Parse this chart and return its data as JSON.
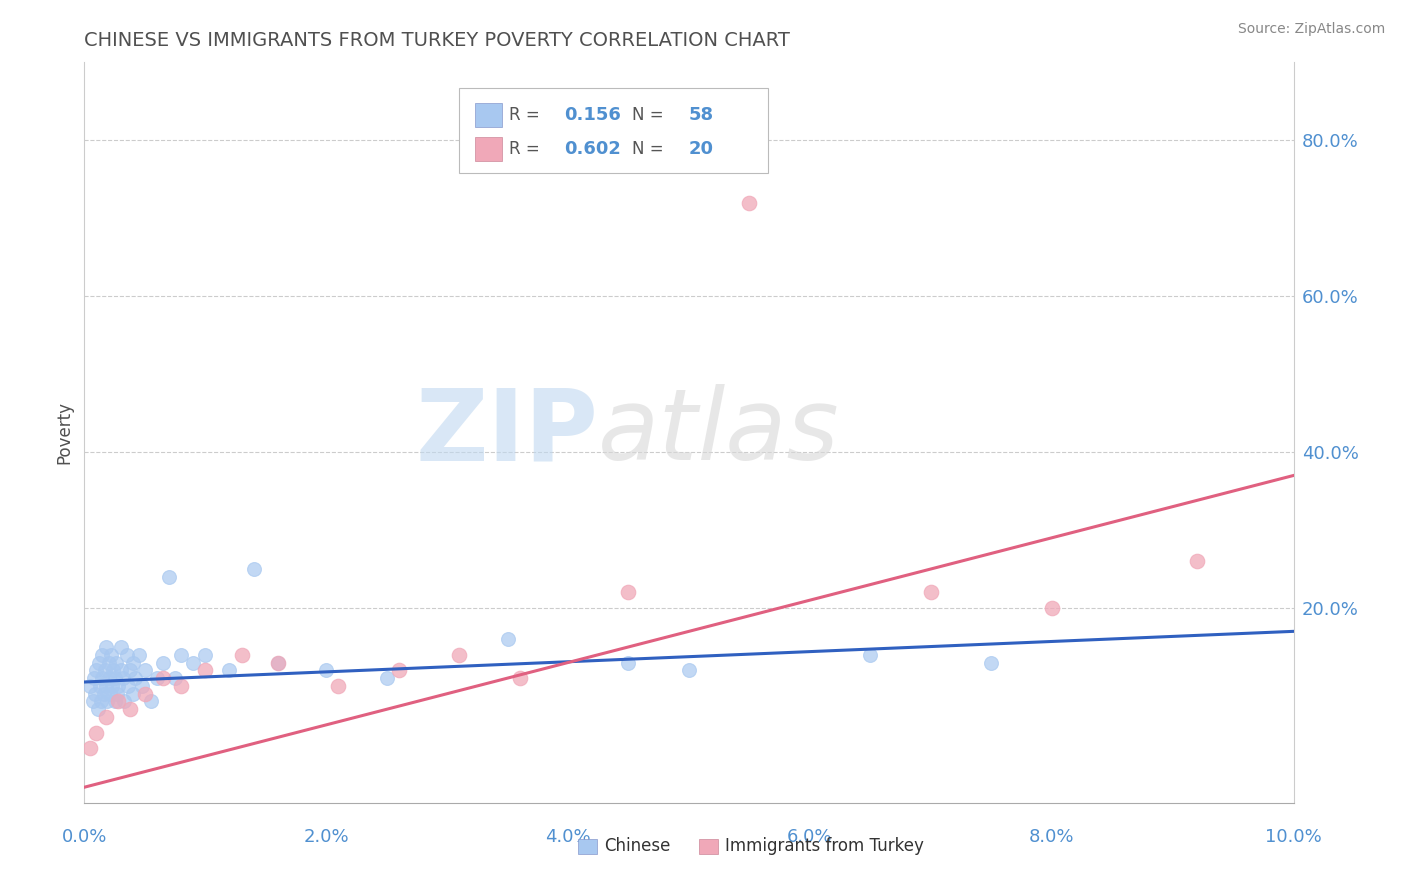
{
  "title": "CHINESE VS IMMIGRANTS FROM TURKEY POVERTY CORRELATION CHART",
  "source_text": "Source: ZipAtlas.com",
  "ylabel": "Poverty",
  "xlim": [
    0.0,
    10.0
  ],
  "ylim": [
    -5.0,
    90.0
  ],
  "ytick_vals": [
    0,
    20,
    40,
    60,
    80
  ],
  "ytick_labels": [
    "",
    "20.0%",
    "40.0%",
    "60.0%",
    "80.0%"
  ],
  "xtick_vals": [
    0,
    2,
    4,
    6,
    8,
    10
  ],
  "xtick_labels": [
    "0.0%",
    "2.0%",
    "4.0%",
    "6.0%",
    "8.0%",
    "10.0%"
  ],
  "chinese_R": 0.156,
  "chinese_N": 58,
  "turkey_R": 0.602,
  "turkey_N": 20,
  "blue_color": "#a8c8f0",
  "pink_color": "#f0a8b8",
  "blue_line_color": "#3060c0",
  "pink_line_color": "#e06080",
  "title_color": "#505050",
  "axis_label_color": "#5090d0",
  "watermark_color_zip": "#c0d8f0",
  "watermark_color_atlas": "#d8d8d8",
  "background_color": "#ffffff",
  "chinese_x": [
    0.05,
    0.07,
    0.08,
    0.09,
    0.1,
    0.11,
    0.12,
    0.13,
    0.14,
    0.15,
    0.15,
    0.16,
    0.17,
    0.18,
    0.18,
    0.19,
    0.2,
    0.2,
    0.21,
    0.22,
    0.23,
    0.24,
    0.25,
    0.25,
    0.26,
    0.27,
    0.28,
    0.3,
    0.3,
    0.32,
    0.33,
    0.35,
    0.36,
    0.38,
    0.4,
    0.4,
    0.42,
    0.45,
    0.48,
    0.5,
    0.55,
    0.6,
    0.65,
    0.7,
    0.75,
    0.8,
    0.9,
    1.0,
    1.2,
    1.4,
    1.6,
    2.0,
    2.5,
    3.5,
    4.5,
    5.0,
    6.5,
    7.5
  ],
  "chinese_y": [
    10,
    8,
    11,
    9,
    12,
    7,
    13,
    10,
    8,
    14,
    11,
    9,
    12,
    10,
    15,
    8,
    13,
    11,
    9,
    14,
    10,
    12,
    8,
    11,
    13,
    9,
    10,
    15,
    12,
    11,
    8,
    14,
    10,
    12,
    9,
    13,
    11,
    14,
    10,
    12,
    8,
    11,
    13,
    24,
    11,
    14,
    13,
    14,
    12,
    25,
    13,
    12,
    11,
    16,
    13,
    12,
    14,
    13
  ],
  "turkey_x": [
    0.05,
    0.1,
    0.18,
    0.28,
    0.38,
    0.5,
    0.65,
    0.8,
    1.0,
    1.3,
    1.6,
    2.1,
    2.6,
    3.1,
    3.6,
    4.5,
    5.5,
    7.0,
    8.0,
    9.2
  ],
  "turkey_y": [
    2.0,
    4.0,
    6.0,
    8.0,
    7.0,
    9.0,
    11.0,
    10.0,
    12.0,
    14.0,
    13.0,
    10.0,
    12.0,
    14.0,
    11.0,
    22.0,
    72.0,
    22.0,
    20.0,
    26.0
  ]
}
